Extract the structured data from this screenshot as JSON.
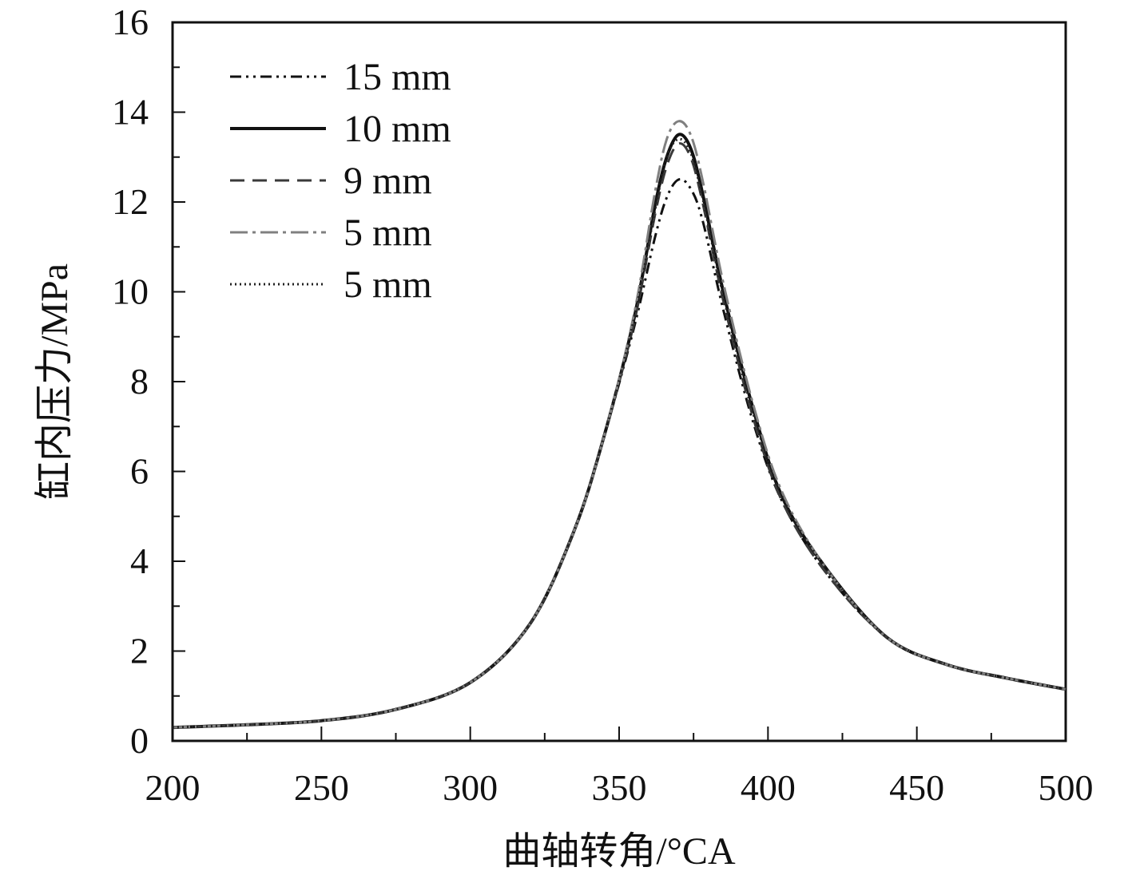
{
  "chart_data": {
    "type": "line",
    "title": "",
    "xlabel": "曲轴转角/°CA",
    "ylabel": "缸内压力/MPa",
    "xlim": [
      200,
      500
    ],
    "ylim": [
      0,
      16
    ],
    "xticks": [
      200,
      250,
      300,
      350,
      400,
      450,
      500
    ],
    "yticks": [
      0,
      2,
      4,
      6,
      8,
      10,
      12,
      14,
      16
    ],
    "xtick_labels": [
      "200",
      "250",
      "300",
      "350",
      "400",
      "450",
      "500"
    ],
    "ytick_labels": [
      "0",
      "2",
      "4",
      "6",
      "8",
      "10",
      "12",
      "14",
      "16"
    ],
    "grid": false,
    "legend_position": "top-left",
    "x": [
      200,
      225,
      250,
      275,
      300,
      320,
      335,
      345,
      355,
      362,
      366,
      370,
      374,
      378,
      385,
      395,
      405,
      420,
      440,
      460,
      480,
      500
    ],
    "series": [
      {
        "name": "15 mm",
        "color": "#111111",
        "dash": "14 6 3 6 3 6",
        "width": 3,
        "values": [
          0.3,
          0.36,
          0.45,
          0.7,
          1.3,
          2.6,
          4.7,
          6.8,
          9.2,
          11.2,
          12.1,
          12.5,
          12.3,
          11.6,
          9.6,
          7.1,
          5.3,
          3.7,
          2.3,
          1.7,
          1.4,
          1.15
        ]
      },
      {
        "name": "10 mm",
        "color": "#111111",
        "dash": "",
        "width": 4,
        "values": [
          0.3,
          0.36,
          0.45,
          0.7,
          1.3,
          2.6,
          4.7,
          6.8,
          9.4,
          11.9,
          13.0,
          13.5,
          13.2,
          12.2,
          10.0,
          7.4,
          5.4,
          3.8,
          2.3,
          1.7,
          1.4,
          1.15
        ]
      },
      {
        "name": "9 mm",
        "color": "#3a3a3a",
        "dash": "18 10",
        "width": 3,
        "values": [
          0.3,
          0.36,
          0.45,
          0.7,
          1.3,
          2.6,
          4.7,
          6.8,
          9.3,
          11.7,
          12.8,
          13.3,
          13.0,
          12.0,
          9.8,
          7.2,
          5.3,
          3.7,
          2.3,
          1.7,
          1.4,
          1.15
        ]
      },
      {
        "name": "5 mm",
        "color": "#808080",
        "dash": "22 6 4 6",
        "width": 3,
        "values": [
          0.3,
          0.36,
          0.45,
          0.7,
          1.3,
          2.6,
          4.7,
          6.8,
          9.5,
          12.2,
          13.4,
          13.8,
          13.5,
          12.5,
          10.2,
          7.5,
          5.5,
          3.8,
          2.3,
          1.7,
          1.4,
          1.15
        ]
      },
      {
        "name": "5 mm",
        "color": "#222222",
        "dash": "2 4",
        "width": 3,
        "values": [
          0.3,
          0.36,
          0.45,
          0.7,
          1.3,
          2.6,
          4.7,
          6.8,
          9.4,
          11.8,
          13.0,
          13.4,
          13.1,
          12.1,
          9.9,
          7.3,
          5.4,
          3.8,
          2.3,
          1.7,
          1.4,
          1.15
        ]
      }
    ]
  }
}
